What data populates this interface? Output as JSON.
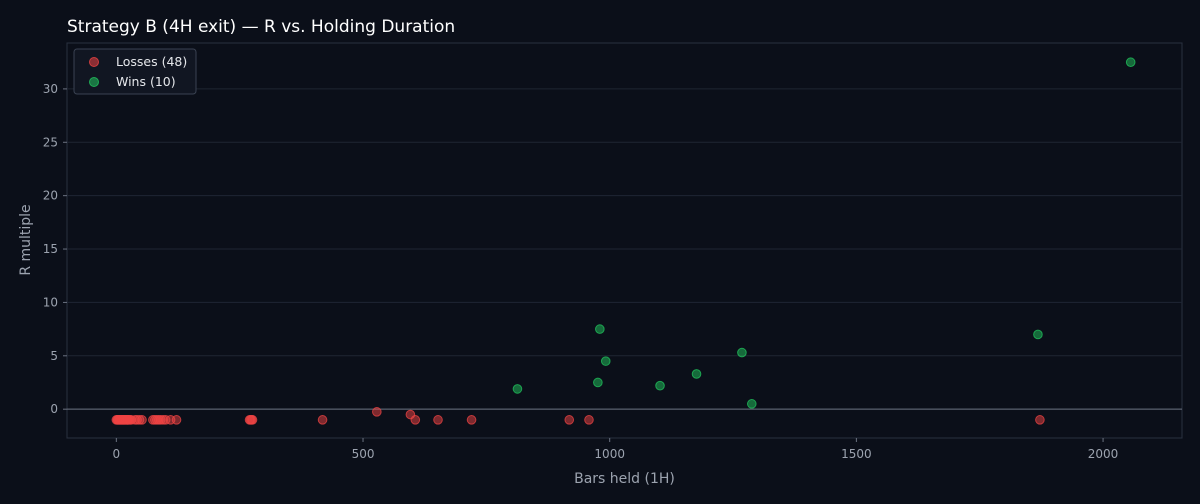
{
  "chart_data": {
    "type": "scatter",
    "title": "Strategy B (4H exit) — R vs. Holding Duration",
    "xlabel": "Bars held (1H)",
    "ylabel": "R multiple",
    "xlim": [
      -100,
      2160
    ],
    "ylim": [
      -2.7,
      34.3
    ],
    "xticks": [
      0,
      500,
      1000,
      1500,
      2000
    ],
    "yticks": [
      0,
      5,
      10,
      15,
      20,
      25,
      30
    ],
    "grid": true,
    "legend_position": "top-left",
    "zero_line": true,
    "series": [
      {
        "name": "Losses (48)",
        "color": "#ef4444",
        "points": [
          [
            0,
            -1
          ],
          [
            2,
            -1
          ],
          [
            4,
            -1
          ],
          [
            6,
            -1
          ],
          [
            8,
            -1
          ],
          [
            10,
            -1
          ],
          [
            12,
            -1
          ],
          [
            14,
            -1
          ],
          [
            16,
            -1
          ],
          [
            18,
            -1
          ],
          [
            20,
            -1
          ],
          [
            22,
            -1
          ],
          [
            24,
            -1
          ],
          [
            26,
            -1
          ],
          [
            28,
            -1
          ],
          [
            30,
            -1
          ],
          [
            38,
            -1
          ],
          [
            42,
            -1
          ],
          [
            47,
            -1
          ],
          [
            52,
            -1
          ],
          [
            74,
            -1
          ],
          [
            78,
            -1
          ],
          [
            82,
            -1
          ],
          [
            86,
            -1
          ],
          [
            90,
            -1
          ],
          [
            95,
            -1
          ],
          [
            100,
            -1
          ],
          [
            110,
            -1
          ],
          [
            122,
            -1
          ],
          [
            270,
            -1
          ],
          [
            272,
            -1
          ],
          [
            274,
            -1
          ],
          [
            276,
            -1
          ],
          [
            418,
            -1
          ],
          [
            528,
            -0.25
          ],
          [
            596,
            -0.5
          ],
          [
            606,
            -1
          ],
          [
            652,
            -1
          ],
          [
            720,
            -1
          ],
          [
            918,
            -1
          ],
          [
            958,
            -1
          ],
          [
            1872,
            -1
          ],
          [
            3,
            -1
          ],
          [
            7,
            -1
          ],
          [
            11,
            -1
          ],
          [
            15,
            -1
          ],
          [
            19,
            -1
          ],
          [
            23,
            -1
          ]
        ]
      },
      {
        "name": "Wins (10)",
        "color": "#22c55e",
        "points": [
          [
            813,
            1.9
          ],
          [
            976,
            2.5
          ],
          [
            980,
            7.5
          ],
          [
            992,
            4.5
          ],
          [
            1102,
            2.2
          ],
          [
            1176,
            3.3
          ],
          [
            1268,
            5.3
          ],
          [
            1288,
            0.5
          ],
          [
            1868,
            7.0
          ],
          [
            2056,
            32.5
          ]
        ]
      }
    ]
  }
}
